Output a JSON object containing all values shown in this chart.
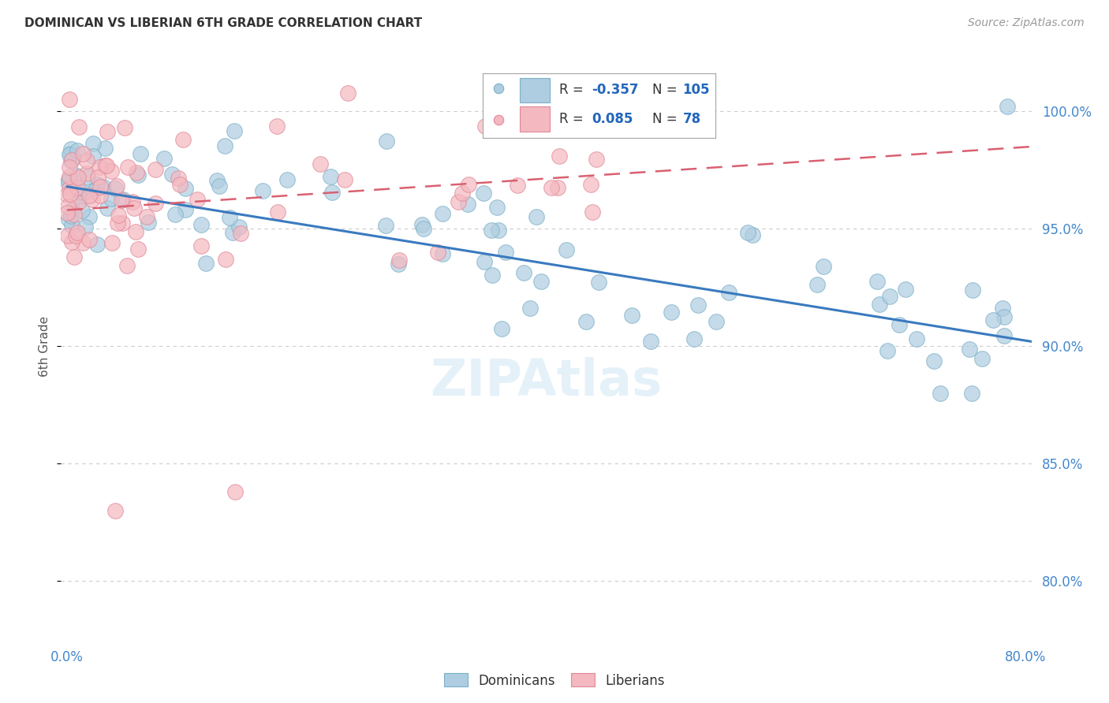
{
  "title": "DOMINICAN VS LIBERIAN 6TH GRADE CORRELATION CHART",
  "source": "Source: ZipAtlas.com",
  "ylabel": "6th Grade",
  "ytick_labels": [
    "80.0%",
    "85.0%",
    "90.0%",
    "95.0%",
    "100.0%"
  ],
  "ytick_values": [
    0.8,
    0.85,
    0.9,
    0.95,
    1.0
  ],
  "xlim": [
    -0.005,
    0.805
  ],
  "ylim": [
    0.775,
    1.025
  ],
  "blue_color": "#aecde0",
  "blue_edge_color": "#7aafc8",
  "pink_color": "#f4b8c0",
  "pink_edge_color": "#e08898",
  "blue_line_color": "#3a7abf",
  "pink_line_color": "#d96070",
  "grid_color": "#cccccc",
  "grid_style": "dashed",
  "axis_label_color": "#4488cc",
  "background_color": "#ffffff",
  "legend_R_color": "#333333",
  "legend_N_color": "#2266bb",
  "blue_line_x0": 0.0,
  "blue_line_x1": 0.805,
  "blue_line_y0": 0.968,
  "blue_line_y1": 0.902,
  "pink_line_x0": 0.0,
  "pink_line_x1": 0.805,
  "pink_line_y0": 0.958,
  "pink_line_y1": 0.985,
  "watermark_color": "#cce5f5",
  "watermark_alpha": 0.5,
  "title_fontsize": 11,
  "source_fontsize": 10,
  "tick_fontsize": 12,
  "ylabel_fontsize": 11
}
